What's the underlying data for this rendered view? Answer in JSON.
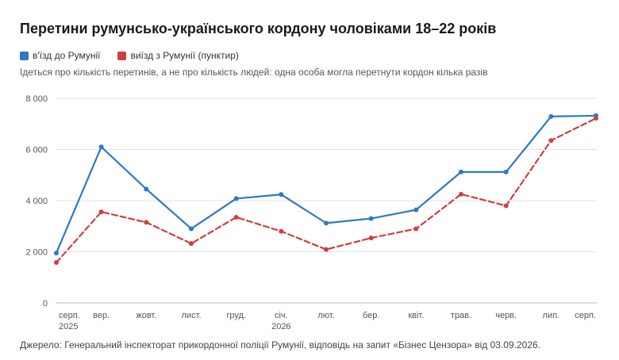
{
  "header": {
    "title": "Перетини румунсько-українського кордону чоловіками 18–22 років",
    "note": "Ідеться про кількість перетинів, а не про кількість людей: одна особа могла перетнути кордон кілька разів"
  },
  "legend": {
    "items": [
      {
        "label": "в'їзд до Румунії",
        "color": "#2f78c4"
      },
      {
        "label": "виїзд з Румунії (пунктир)",
        "color": "#cf3f3f"
      }
    ]
  },
  "footer": {
    "source": "Джерело: Генеральний інспекторат прикордонної поліції Румунії, відповідь на запит «Бізнес Цензора» від 03.09.2026."
  },
  "chart_data": {
    "type": "line",
    "categories": [
      "серп.",
      "вер.",
      "жовт.",
      "лист.",
      "груд.",
      "січ.",
      "лют.",
      "бер.",
      "квіт.",
      "трав.",
      "черв.",
      "лип.",
      "серп."
    ],
    "category_years": [
      "2025",
      "",
      "",
      "",
      "",
      "2026",
      "",
      "",
      "",
      "",
      "",
      "",
      ""
    ],
    "ylim": [
      0,
      8000
    ],
    "yticks": [
      0,
      2000,
      4000,
      6000,
      8000
    ],
    "ytick_labels": [
      "0",
      "2 000",
      "4 000",
      "6 000",
      "8 000"
    ],
    "grid": true,
    "legend_position": "top-left",
    "series": [
      {
        "name": "в'їзд до Румунії",
        "color": "#2f78c4",
        "dash": false,
        "values": [
          1950,
          6100,
          4450,
          2900,
          4080,
          4240,
          3120,
          3300,
          3640,
          5120,
          5120,
          7290,
          7320
        ]
      },
      {
        "name": "виїзд з Румунії (пунктир)",
        "color": "#cf3f3f",
        "dash": true,
        "values": [
          1580,
          3560,
          3150,
          2320,
          3350,
          2800,
          2090,
          2540,
          2900,
          4250,
          3800,
          6350,
          7220
        ]
      }
    ]
  }
}
